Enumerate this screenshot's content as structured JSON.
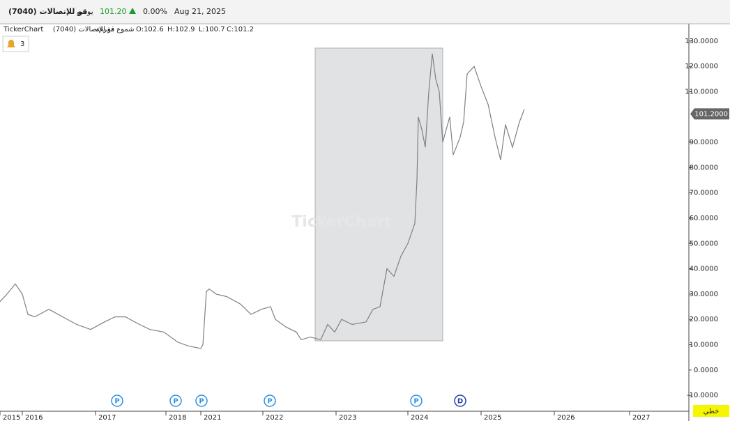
{
  "header": {
    "symbol": "قو للإتصالات (7040)",
    "period": "يومي",
    "price": "101.20",
    "change": "0.00%",
    "date": "Aug 21, 2025"
  },
  "legend_line": {
    "brand": "TickerChart",
    "symbol": "قو للإتصالات (7040)",
    "style": "شموع مفرغة",
    "open": "O:102.6",
    "high": "H:102.9",
    "low": "L:100.7",
    "close": "C:101.2"
  },
  "alerts": "3",
  "watermark": "TickerChart",
  "chart_mode": "خطي",
  "chart_data": {
    "type": "line",
    "x": [
      0,
      10,
      22,
      32,
      40,
      50,
      70,
      90,
      110,
      130,
      150,
      165,
      180,
      200,
      215,
      235,
      255,
      270,
      288,
      291,
      296,
      300,
      310,
      325,
      345,
      360,
      375,
      388,
      395,
      410,
      425,
      432,
      445,
      460,
      470,
      480,
      490,
      505,
      525,
      535,
      545,
      555,
      565,
      575,
      585,
      595,
      598,
      600,
      605,
      610,
      615,
      620,
      625,
      630,
      635,
      640,
      645,
      650,
      660,
      665,
      670,
      680,
      690,
      700,
      710,
      718,
      725,
      735,
      745,
      752
    ],
    "series": [
      {
        "name": "7040",
        "color": "#808080",
        "values": [
          27,
          30,
          34,
          30,
          22,
          21,
          24,
          21,
          18,
          16,
          19,
          21,
          21,
          18,
          16,
          15,
          11,
          9.5,
          8.5,
          10,
          31,
          32,
          30,
          29,
          26,
          22,
          24,
          25,
          20,
          17,
          15,
          12,
          13,
          12,
          18,
          15,
          20,
          18,
          19,
          24,
          25,
          40,
          37,
          45,
          50,
          58,
          75,
          100,
          95,
          88,
          110,
          125,
          115,
          110,
          90,
          95,
          100,
          85,
          92,
          98,
          117,
          120,
          112,
          105,
          92,
          83,
          97,
          88,
          98,
          103
        ]
      }
    ],
    "xlim": [
      0,
      988
    ],
    "xticks": [
      {
        "value": 0,
        "label": "2015"
      },
      {
        "value": 32,
        "label": "2016"
      },
      {
        "value": 137,
        "label": "2017"
      },
      {
        "value": 238,
        "label": "2018"
      },
      {
        "value": 288,
        "label": "2021"
      },
      {
        "value": 377,
        "label": "2022"
      },
      {
        "value": 482,
        "label": "2023"
      },
      {
        "value": 585,
        "label": "2024"
      },
      {
        "value": 690,
        "label": "2025"
      },
      {
        "value": 795,
        "label": "2026"
      },
      {
        "value": 903,
        "label": "2027"
      }
    ],
    "ylim": [
      -16.3,
      136.3
    ],
    "yticks": [
      {
        "value": 130,
        "label": "130.0000"
      },
      {
        "value": 120,
        "label": "120.0000"
      },
      {
        "value": 110,
        "label": "110.0000"
      },
      {
        "value": 90,
        "label": "90.0000"
      },
      {
        "value": 80,
        "label": "80.0000"
      },
      {
        "value": 70,
        "label": "70.0000"
      },
      {
        "value": 60,
        "label": "60.0000"
      },
      {
        "value": 50,
        "label": "50.0000"
      },
      {
        "value": 40,
        "label": "40.0000"
      },
      {
        "value": 30,
        "label": "30.0000"
      },
      {
        "value": 20,
        "label": "20.0000"
      },
      {
        "value": 10,
        "label": "10.0000"
      },
      {
        "value": 0,
        "label": "0.0000"
      },
      {
        "value": -10,
        "label": "-10.0000"
      }
    ],
    "last_price": {
      "value": 101.2,
      "label": "101.2000"
    },
    "events": [
      {
        "x": 168,
        "label": "P"
      },
      {
        "x": 252,
        "label": "P"
      },
      {
        "x": 289,
        "label": "P"
      },
      {
        "x": 387,
        "label": "P"
      },
      {
        "x": 597,
        "label": "P"
      },
      {
        "x": 660,
        "label": "D"
      }
    ]
  }
}
